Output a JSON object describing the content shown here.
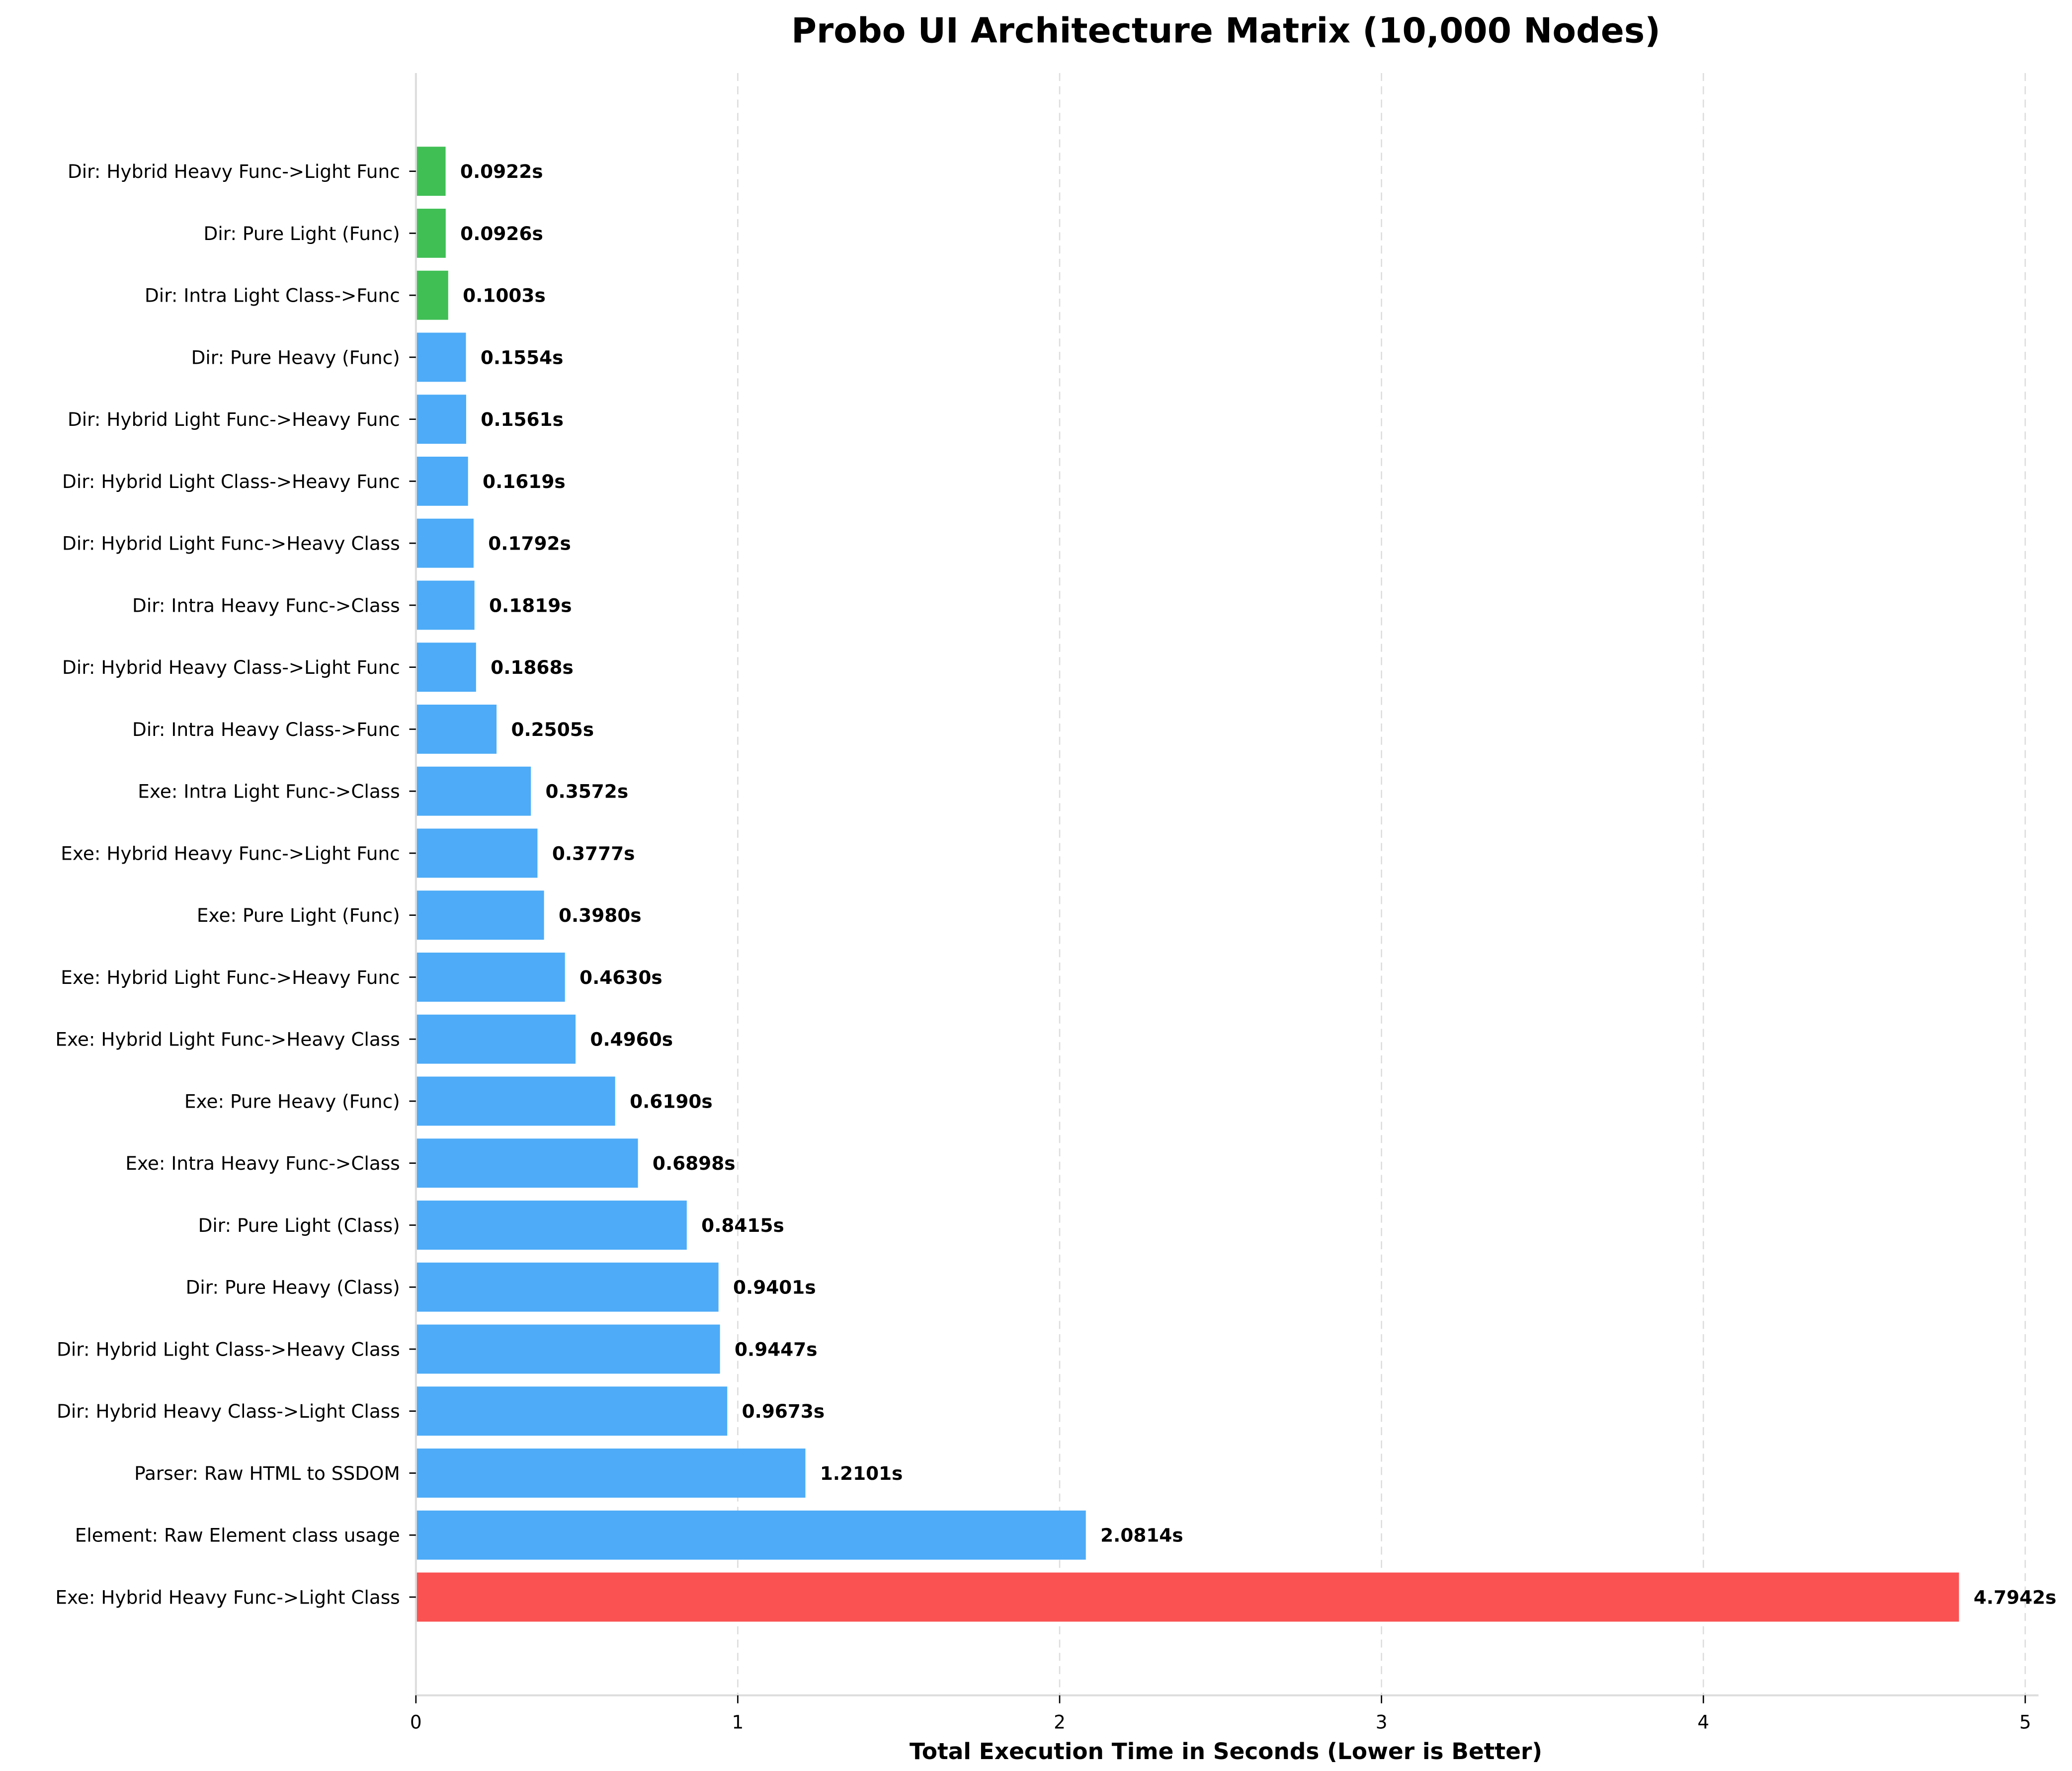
{
  "chart_data": {
    "type": "bar",
    "orientation": "horizontal",
    "title": "Probo UI Architecture Matrix (10,000 Nodes)",
    "xlabel": "Total Execution Time in Seconds (Lower is Better)",
    "ylabel": "",
    "xlim": [
      0,
      5.04
    ],
    "xticks": [
      "0",
      "1",
      "2",
      "3",
      "4",
      "5"
    ],
    "grid": "x dashed",
    "legend": "none",
    "value_suffix": "s",
    "colors": {
      "fast": "#40bf55",
      "normal": "#4dabf7",
      "slowest": "#fa5252"
    },
    "categories": [
      "Dir: Hybrid Heavy Func->Light Func",
      "Dir: Pure Light (Func)",
      "Dir: Intra Light Class->Func",
      "Dir: Pure Heavy (Func)",
      "Dir: Hybrid Light Func->Heavy Func",
      "Dir: Hybrid Light Class->Heavy Func",
      "Dir: Hybrid Light Func->Heavy Class",
      "Dir: Intra Heavy Func->Class",
      "Dir: Hybrid Heavy Class->Light Func",
      "Dir: Intra Heavy Class->Func",
      "Exe: Intra Light Func->Class",
      "Exe: Hybrid Heavy Func->Light Func",
      "Exe: Pure Light (Func)",
      "Exe: Hybrid Light Func->Heavy Func",
      "Exe: Hybrid Light Func->Heavy Class",
      "Exe: Pure Heavy (Func)",
      "Exe: Intra Heavy Func->Class",
      "Dir: Pure Light (Class)",
      "Dir: Pure Heavy (Class)",
      "Dir: Hybrid Light Class->Heavy Class",
      "Dir: Hybrid Heavy Class->Light Class",
      "Parser: Raw HTML to SSDOM",
      "Element: Raw Element class usage",
      "Exe: Hybrid Heavy Func->Light Class"
    ],
    "values": [
      0.0922,
      0.0926,
      0.1003,
      0.1554,
      0.1561,
      0.1619,
      0.1792,
      0.1819,
      0.1868,
      0.2505,
      0.3572,
      0.3777,
      0.398,
      0.463,
      0.496,
      0.619,
      0.6898,
      0.8415,
      0.9401,
      0.9447,
      0.9673,
      1.2101,
      2.0814,
      4.7942
    ],
    "data_labels": [
      "0.0922s",
      "0.0926s",
      "0.1003s",
      "0.1554s",
      "0.1561s",
      "0.1619s",
      "0.1792s",
      "0.1819s",
      "0.1868s",
      "0.2505s",
      "0.3572s",
      "0.3777s",
      "0.3980s",
      "0.4630s",
      "0.4960s",
      "0.6190s",
      "0.6898s",
      "0.8415s",
      "0.9401s",
      "0.9447s",
      "0.9673s",
      "1.2101s",
      "2.0814s",
      "4.7942s"
    ],
    "bar_colors": [
      "fast",
      "fast",
      "fast",
      "normal",
      "normal",
      "normal",
      "normal",
      "normal",
      "normal",
      "normal",
      "normal",
      "normal",
      "normal",
      "normal",
      "normal",
      "normal",
      "normal",
      "normal",
      "normal",
      "normal",
      "normal",
      "normal",
      "normal",
      "slowest"
    ]
  }
}
